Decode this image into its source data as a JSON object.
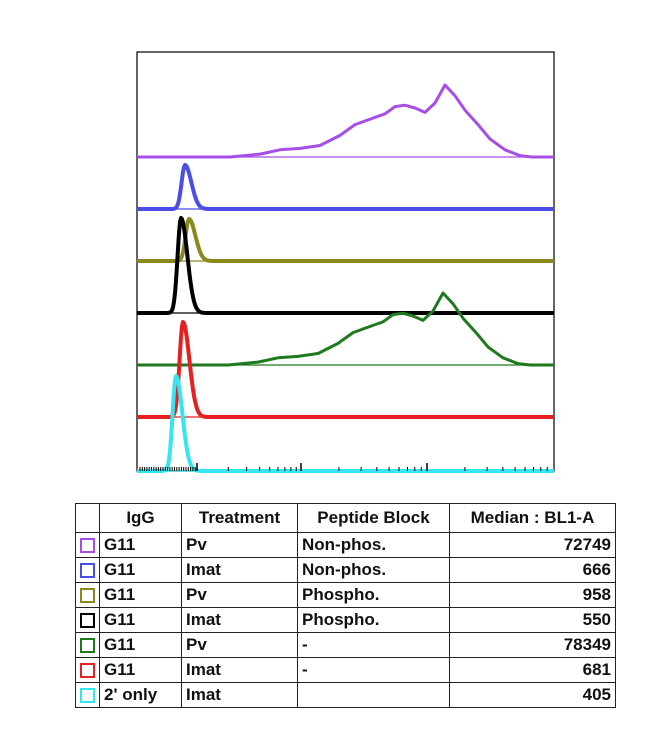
{
  "chart_data": {
    "type": "histogram-overlay",
    "title": "",
    "xlabel": "",
    "ylabel": "",
    "x_scale": "log",
    "series": [
      {
        "color": "#a64ee6",
        "shape": "bimodal",
        "median": 72749
      },
      {
        "color": "#4a4ee6",
        "shape": "narrow",
        "median": 666
      },
      {
        "color": "#8a8a1c",
        "shape": "narrow",
        "median": 958
      },
      {
        "color": "#000000",
        "shape": "narrow",
        "median": 550
      },
      {
        "color": "#1e7a1e",
        "shape": "bimodal",
        "median": 78349
      },
      {
        "color": "#e62020",
        "shape": "narrow",
        "median": 681
      },
      {
        "color": "#33e6f0",
        "shape": "narrow",
        "median": 405
      }
    ]
  },
  "table": {
    "headers": [
      "IgG",
      "Treatment",
      "Peptide Block",
      "Median : BL1-A"
    ],
    "rows": [
      {
        "color": "#a64ee6",
        "igg": "G11",
        "treatment": "Pv",
        "block": "Non-phos.",
        "median": "72749"
      },
      {
        "color": "#4a4ee6",
        "igg": "G11",
        "treatment": "Imat",
        "block": "Non-phos.",
        "median": "666"
      },
      {
        "color": "#8a8a1c",
        "igg": "G11",
        "treatment": "Pv",
        "block": "Phospho.",
        "median": "958"
      },
      {
        "color": "#000000",
        "igg": "G11",
        "treatment": "Imat",
        "block": "Phospho.",
        "median": "550"
      },
      {
        "color": "#1e7a1e",
        "igg": "G11",
        "treatment": "Pv",
        "block": "-",
        "median": "78349"
      },
      {
        "color": "#e62020",
        "igg": "G11",
        "treatment": "Imat",
        "block": "-",
        "median": "681"
      },
      {
        "color": "#33e6f0",
        "igg": "2' only",
        "treatment": "Imat",
        "block": "",
        "median": "405"
      }
    ]
  }
}
